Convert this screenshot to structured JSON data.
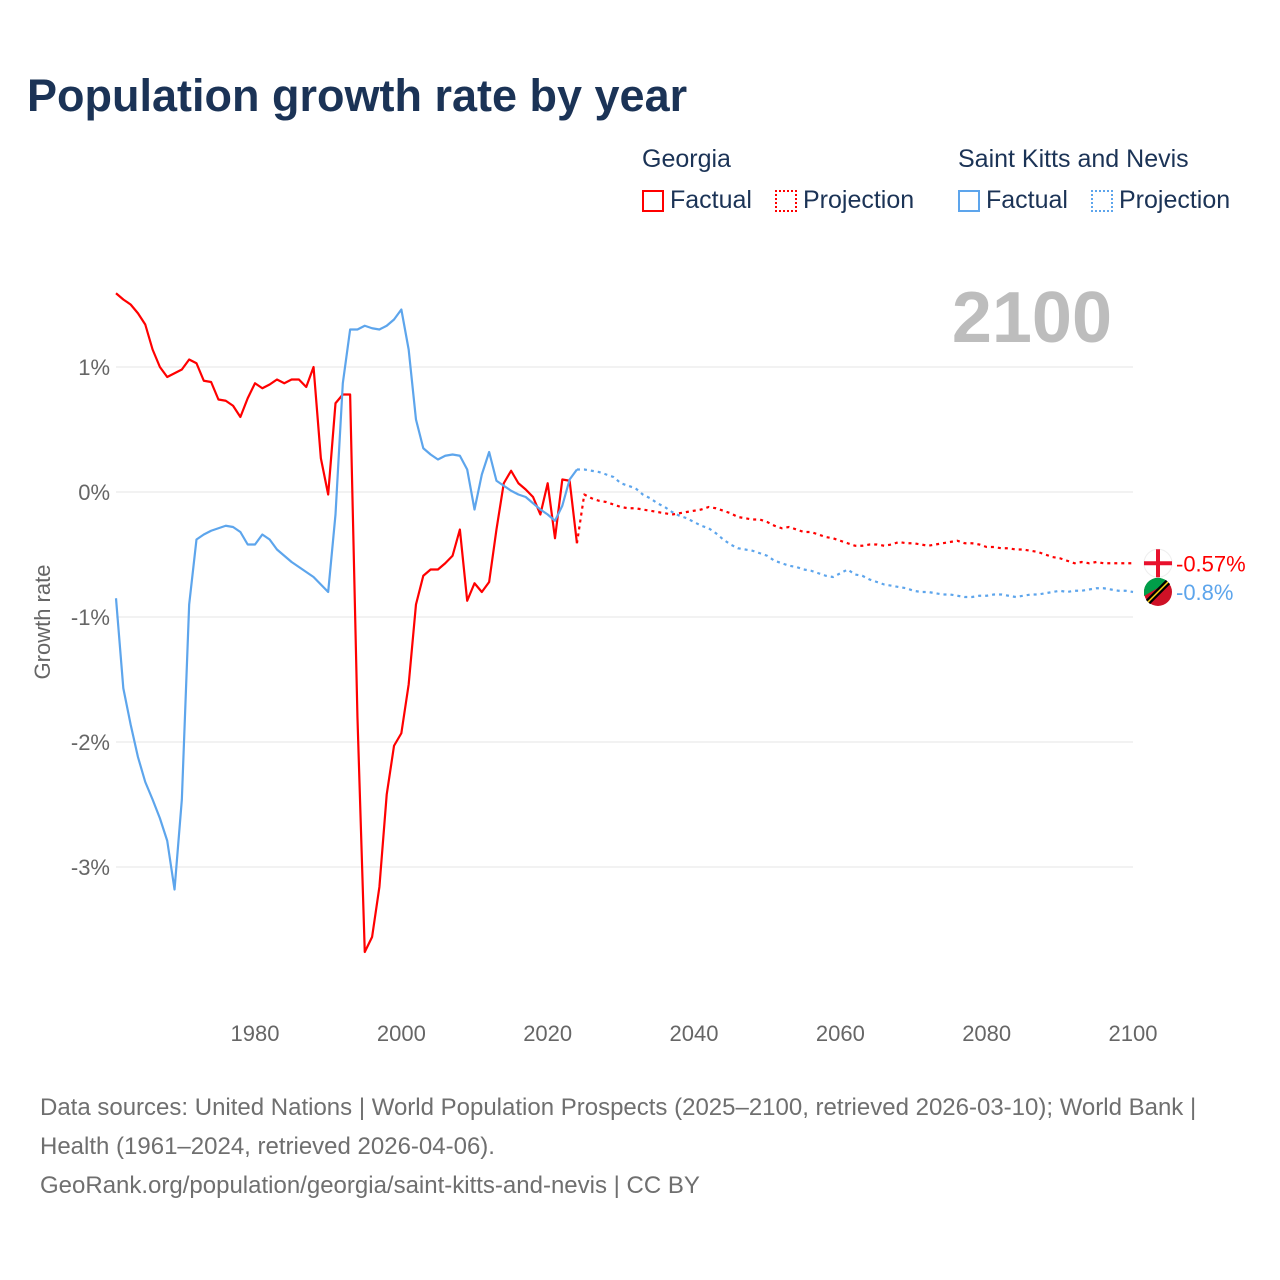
{
  "title": "Population growth rate by year",
  "legend": {
    "groups": [
      {
        "name": "Georgia",
        "factual": "Factual",
        "projection": "Projection",
        "color": "#ff0000"
      },
      {
        "name": "Saint Kitts and Nevis",
        "factual": "Factual",
        "projection": "Projection",
        "color": "#5da5ec"
      }
    ]
  },
  "year_label": "2100",
  "end_labels": [
    "-0.57%",
    "-0.8%"
  ],
  "footer": {
    "line1": "Data sources: United Nations | World Population Prospects (2025–2100, retrieved 2026-03-10); World Bank | Health (1961–2024, retrieved 2026-04-06).",
    "line2": "GeoRank.org/population/georgia/saint-kitts-and-nevis | CC BY"
  },
  "chart_data": {
    "type": "line",
    "title": "Population growth rate by year",
    "xlabel": "",
    "ylabel": "Growth rate",
    "xlim": [
      1961,
      2100
    ],
    "ylim": [
      -4,
      1.8
    ],
    "xticks": [
      1980,
      2000,
      2020,
      2040,
      2060,
      2080,
      2100
    ],
    "xtick_labels": [
      "1980",
      "2000",
      "2020",
      "2040",
      "2060",
      "2080",
      "2100"
    ],
    "yticks": [
      1,
      0,
      -1,
      -2,
      -3
    ],
    "ytick_labels": [
      "1%",
      "0%",
      "-1%",
      "-2%",
      "-3%"
    ],
    "grid": true,
    "series": [
      {
        "name": "Georgia",
        "kind": "factual",
        "start": 1961,
        "values": [
          1.59,
          1.54,
          1.5,
          1.43,
          1.34,
          1.14,
          1.0,
          0.92,
          0.95,
          0.98,
          1.06,
          1.03,
          0.89,
          0.88,
          0.74,
          0.73,
          0.69,
          0.6,
          0.75,
          0.87,
          0.83,
          0.86,
          0.9,
          0.87,
          0.9,
          0.9,
          0.84,
          1.0,
          0.27,
          -0.02,
          0.71,
          0.78,
          0.78,
          -1.8,
          -3.68,
          -3.56,
          -3.16,
          -2.42,
          -2.03,
          -1.93,
          -1.54,
          -0.9,
          -0.67,
          -0.62,
          -0.62,
          -0.57,
          -0.51,
          -0.3,
          -0.87,
          -0.73,
          -0.8,
          -0.72,
          -0.3,
          0.07,
          0.17,
          0.07,
          0.02,
          -0.04,
          -0.18,
          0.07,
          -0.37,
          0.1,
          0.09,
          -0.41
        ]
      },
      {
        "name": "Georgia",
        "kind": "projection",
        "start": 2025,
        "values": [
          -0.02,
          -0.05,
          -0.07,
          -0.08,
          -0.1,
          -0.12,
          -0.13,
          -0.13,
          -0.14,
          -0.15,
          -0.16,
          -0.17,
          -0.18,
          -0.17,
          -0.16,
          -0.15,
          -0.14,
          -0.12,
          -0.13,
          -0.15,
          -0.17,
          -0.2,
          -0.21,
          -0.22,
          -0.22,
          -0.24,
          -0.27,
          -0.29,
          -0.28,
          -0.3,
          -0.32,
          -0.32,
          -0.34,
          -0.36,
          -0.37,
          -0.39,
          -0.41,
          -0.43,
          -0.43,
          -0.42,
          -0.42,
          -0.43,
          -0.42,
          -0.4,
          -0.41,
          -0.41,
          -0.42,
          -0.43,
          -0.42,
          -0.41,
          -0.4,
          -0.39,
          -0.41,
          -0.41,
          -0.42,
          -0.44,
          -0.44,
          -0.45,
          -0.45,
          -0.46,
          -0.46,
          -0.47,
          -0.48,
          -0.5,
          -0.52,
          -0.53,
          -0.55,
          -0.57,
          -0.56,
          -0.57,
          -0.56,
          -0.57,
          -0.57,
          -0.57,
          -0.57,
          -0.57
        ]
      },
      {
        "name": "Saint Kitts and Nevis",
        "kind": "factual",
        "start": 1961,
        "values": [
          -0.85,
          -1.57,
          -1.86,
          -2.12,
          -2.32,
          -2.46,
          -2.61,
          -2.79,
          -3.18,
          -2.46,
          -0.9,
          -0.38,
          -0.34,
          -0.31,
          -0.29,
          -0.27,
          -0.28,
          -0.32,
          -0.42,
          -0.42,
          -0.34,
          -0.38,
          -0.46,
          -0.51,
          -0.56,
          -0.6,
          -0.64,
          -0.68,
          -0.74,
          -0.8,
          -0.18,
          0.87,
          1.3,
          1.3,
          1.33,
          1.31,
          1.3,
          1.33,
          1.38,
          1.46,
          1.14,
          0.58,
          0.35,
          0.3,
          0.26,
          0.29,
          0.3,
          0.29,
          0.18,
          -0.14,
          0.14,
          0.32,
          0.09,
          0.05,
          0.01,
          -0.02,
          -0.04,
          -0.09,
          -0.14,
          -0.18,
          -0.23,
          -0.11,
          0.1,
          0.18
        ]
      },
      {
        "name": "Saint Kitts and Nevis",
        "kind": "projection",
        "start": 2025,
        "values": [
          0.18,
          0.17,
          0.16,
          0.14,
          0.12,
          0.07,
          0.05,
          0.03,
          -0.02,
          -0.05,
          -0.09,
          -0.12,
          -0.16,
          -0.19,
          -0.21,
          -0.24,
          -0.27,
          -0.29,
          -0.33,
          -0.38,
          -0.42,
          -0.45,
          -0.46,
          -0.47,
          -0.49,
          -0.51,
          -0.55,
          -0.57,
          -0.59,
          -0.6,
          -0.62,
          -0.63,
          -0.65,
          -0.67,
          -0.68,
          -0.65,
          -0.62,
          -0.66,
          -0.67,
          -0.7,
          -0.72,
          -0.74,
          -0.75,
          -0.76,
          -0.77,
          -0.79,
          -0.8,
          -0.8,
          -0.81,
          -0.82,
          -0.82,
          -0.83,
          -0.84,
          -0.84,
          -0.83,
          -0.83,
          -0.82,
          -0.82,
          -0.83,
          -0.84,
          -0.83,
          -0.82,
          -0.82,
          -0.81,
          -0.8,
          -0.79,
          -0.8,
          -0.79,
          -0.79,
          -0.78,
          -0.77,
          -0.77,
          -0.78,
          -0.79,
          -0.79,
          -0.8
        ]
      }
    ]
  }
}
